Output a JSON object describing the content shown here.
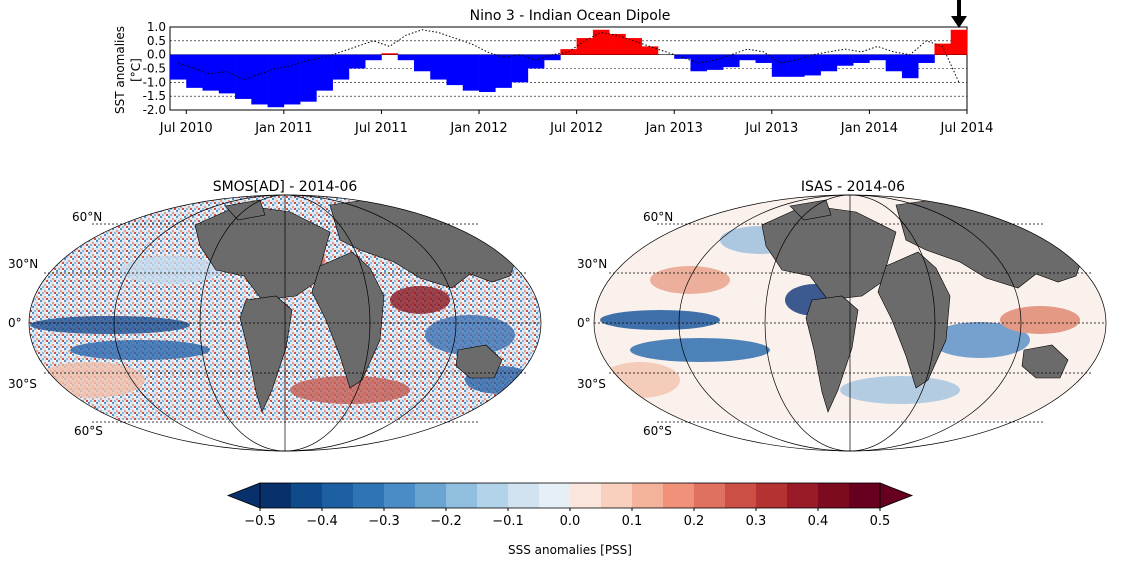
{
  "chart_data": {
    "type": "bar",
    "title": "Nino 3 - Indian Ocean Dipole",
    "ylabel_line1": "SST anomalies",
    "ylabel_line2": "[°C]",
    "ylim": [
      -2.0,
      1.0
    ],
    "yticks": [
      "1.0",
      "0.5",
      "0.0",
      "-0.5",
      "-1.0",
      "-1.5",
      "-2.0"
    ],
    "ytick_values": [
      1.0,
      0.5,
      0.0,
      -0.5,
      -1.0,
      -1.5,
      -2.0
    ],
    "xticks": [
      "Jul 2010",
      "Jan 2011",
      "Jul 2011",
      "Jan 2012",
      "Jul 2012",
      "Jan 2013",
      "Jul 2013",
      "Jan 2014",
      "Jul 2014"
    ],
    "x_months": [
      "2010-06",
      "2010-07",
      "2010-08",
      "2010-09",
      "2010-10",
      "2010-11",
      "2010-12",
      "2011-01",
      "2011-02",
      "2011-03",
      "2011-04",
      "2011-05",
      "2011-06",
      "2011-07",
      "2011-08",
      "2011-09",
      "2011-10",
      "2011-11",
      "2011-12",
      "2012-01",
      "2012-02",
      "2012-03",
      "2012-04",
      "2012-05",
      "2012-06",
      "2012-07",
      "2012-08",
      "2012-09",
      "2012-10",
      "2012-11",
      "2012-12",
      "2013-01",
      "2013-02",
      "2013-03",
      "2013-04",
      "2013-05",
      "2013-06",
      "2013-07",
      "2013-08",
      "2013-09",
      "2013-10",
      "2013-11",
      "2013-12",
      "2014-01",
      "2014-02",
      "2014-03",
      "2014-04",
      "2014-05",
      "2014-06"
    ],
    "nino3": [
      -0.9,
      -1.2,
      -1.3,
      -1.4,
      -1.6,
      -1.8,
      -1.9,
      -1.8,
      -1.7,
      -1.3,
      -0.9,
      -0.5,
      -0.2,
      0.05,
      -0.2,
      -0.6,
      -0.9,
      -1.1,
      -1.3,
      -1.35,
      -1.2,
      -1.0,
      -0.5,
      -0.2,
      0.2,
      0.6,
      0.9,
      0.75,
      0.6,
      0.3,
      0.0,
      -0.15,
      -0.6,
      -0.55,
      -0.45,
      -0.2,
      -0.3,
      -0.8,
      -0.8,
      -0.75,
      -0.6,
      -0.4,
      -0.3,
      -0.2,
      -0.6,
      -0.85,
      -0.3,
      0.4,
      0.9
    ],
    "iod": [
      -0.3,
      -0.5,
      -0.7,
      -0.6,
      -0.9,
      -0.7,
      -0.5,
      -0.4,
      -0.2,
      -0.1,
      0.1,
      0.3,
      0.5,
      0.3,
      0.7,
      0.9,
      0.8,
      0.6,
      0.4,
      0.1,
      -0.1,
      0.0,
      -0.2,
      0.0,
      0.1,
      0.5,
      0.8,
      0.7,
      0.5,
      0.3,
      0.1,
      -0.1,
      -0.3,
      -0.2,
      0.0,
      0.2,
      0.1,
      -0.3,
      -0.2,
      0.0,
      0.1,
      0.2,
      0.1,
      0.3,
      0.1,
      0.0,
      0.5,
      0.3,
      -1.0
    ],
    "arrow_at": "2014-06"
  },
  "maps": [
    {
      "title": "SMOS[AD] - 2014-06",
      "lat_labels": [
        "60°N",
        "30°N",
        "0°",
        "30°S",
        "60°S"
      ]
    },
    {
      "title": "ISAS - 2014-06",
      "lat_labels": [
        "60°N",
        "30°N",
        "0°",
        "30°S",
        "60°S"
      ]
    }
  ],
  "colorbar": {
    "label": "SSS anomalies [PSS]",
    "min": -0.5,
    "max": 0.5,
    "tick_labels": [
      "−0.5",
      "−0.4",
      "−0.3",
      "−0.2",
      "−0.1",
      "0.0",
      "0.1",
      "0.2",
      "0.3",
      "0.4",
      "0.5"
    ],
    "colors": [
      "#08306b",
      "#0f4a8a",
      "#1d5fa3",
      "#2f74b5",
      "#4a8cc5",
      "#6aa5d2",
      "#8fbedf",
      "#b3d3e9",
      "#d1e3f0",
      "#e7eff6",
      "#fbe6dd",
      "#f9d0bd",
      "#f5b29a",
      "#ef9279",
      "#e07060",
      "#cc4f46",
      "#b53233",
      "#991a27",
      "#7d0b20",
      "#67001f"
    ],
    "zero_color": "#f7f7f7",
    "negative_color": "#2166ac",
    "positive_color": "#b2182b"
  },
  "colors": {
    "nino_negative": "#0000ff",
    "nino_positive": "#ff0000",
    "land": "#6b6b6b",
    "ice": "#ffffff"
  }
}
